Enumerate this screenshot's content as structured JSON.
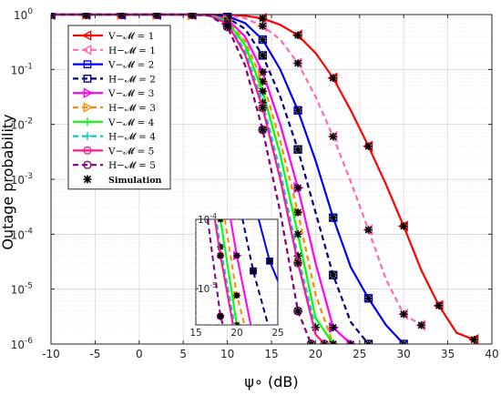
{
  "chart_data": {
    "type": "line",
    "xlabel": "ψ∘ (dB)",
    "ylabel": "Outage probability",
    "xlim": [
      -10,
      40
    ],
    "ylim": [
      1e-06,
      1
    ],
    "yscale": "log",
    "grid": true,
    "legend_position": "top-left",
    "xticks": [
      "-10",
      "-5",
      "0",
      "5",
      "10",
      "15",
      "20",
      "25",
      "30",
      "35",
      "40"
    ],
    "yticks": [
      {
        "base": "10",
        "exp": "0"
      },
      {
        "base": "10",
        "exp": "-1"
      },
      {
        "base": "10",
        "exp": "-2"
      },
      {
        "base": "10",
        "exp": "-3"
      },
      {
        "base": "10",
        "exp": "-4"
      },
      {
        "base": "10",
        "exp": "-5"
      },
      {
        "base": "10",
        "exp": "-6"
      }
    ],
    "series": [
      {
        "name": "V−𝓜 = 1",
        "color": "#ff0000",
        "dash": "solid",
        "marker": "tri-left",
        "x": [
          -10,
          -8,
          -6,
          -4,
          -2,
          0,
          2,
          4,
          6,
          8,
          10,
          12,
          14,
          16,
          18,
          20,
          22,
          24,
          26,
          28,
          30,
          32,
          34,
          36,
          38
        ],
        "y": [
          1,
          1,
          1,
          1,
          1,
          1,
          1,
          1,
          1,
          0.999,
          0.99,
          0.95,
          0.85,
          0.65,
          0.42,
          0.2,
          0.07,
          0.018,
          0.004,
          0.0008,
          0.00014,
          2.2e-05,
          5e-06,
          1.6e-06,
          1.2e-06
        ]
      },
      {
        "name": "H−𝓜 = 1",
        "color": "#ff69b4",
        "dash": "dash",
        "marker": "tri-left",
        "x": [
          -10,
          -8,
          -6,
          -4,
          -2,
          0,
          2,
          4,
          6,
          8,
          10,
          12,
          14,
          16,
          18,
          20,
          22,
          24,
          26,
          28,
          30,
          32
        ],
        "y": [
          1,
          1,
          1,
          1,
          1,
          1,
          1,
          1,
          1,
          0.995,
          0.96,
          0.86,
          0.62,
          0.35,
          0.13,
          0.032,
          0.006,
          0.0009,
          0.00012,
          1.5e-05,
          3.5e-06,
          2.2e-06
        ]
      },
      {
        "name": "V−𝓜 = 2",
        "color": "#0000ff",
        "dash": "solid",
        "marker": "square",
        "x": [
          -10,
          -8,
          -6,
          -4,
          -2,
          0,
          2,
          4,
          6,
          8,
          10,
          12,
          14,
          16,
          18,
          20,
          22,
          24,
          26,
          28,
          30
        ],
        "y": [
          1,
          1,
          1,
          1,
          1,
          1,
          1,
          1,
          1,
          0.99,
          0.93,
          0.7,
          0.35,
          0.1,
          0.018,
          0.0022,
          0.0002,
          2.5e-05,
          6.8e-06,
          2.2e-06,
          1e-06
        ]
      },
      {
        "name": "H−𝓜 = 2",
        "color": "#000080",
        "dash": "dash",
        "marker": "square",
        "x": [
          -10,
          -8,
          -6,
          -4,
          -2,
          0,
          2,
          4,
          6,
          8,
          10,
          12,
          14,
          16,
          18,
          20,
          22,
          24,
          26
        ],
        "y": [
          1,
          1,
          1,
          1,
          1,
          1,
          1,
          1,
          1,
          0.985,
          0.88,
          0.55,
          0.18,
          0.032,
          0.0035,
          0.00025,
          1.8e-05,
          2.5e-06,
          1e-06
        ]
      },
      {
        "name": "V−𝓜 = 3",
        "color": "#ff00ff",
        "dash": "solid",
        "marker": "tri-right",
        "x": [
          -10,
          -8,
          -6,
          -4,
          -2,
          0,
          2,
          4,
          6,
          8,
          10,
          12,
          14,
          16,
          18,
          20,
          22,
          24
        ],
        "y": [
          1,
          1,
          1,
          1,
          1,
          1,
          1,
          1,
          1,
          0.98,
          0.82,
          0.4,
          0.09,
          0.01,
          0.0007,
          3e-05,
          2e-06,
          1e-06
        ]
      },
      {
        "name": "H−𝓜 = 3",
        "color": "#ff8c00",
        "dash": "dash",
        "marker": "tri-right",
        "x": [
          -10,
          -8,
          -6,
          -4,
          -2,
          0,
          2,
          4,
          6,
          8,
          10,
          12,
          14,
          16,
          18,
          20,
          22
        ],
        "y": [
          1,
          1,
          1,
          1,
          1,
          1,
          1,
          1,
          1,
          0.975,
          0.78,
          0.33,
          0.06,
          0.005,
          0.00025,
          8e-06,
          1e-06
        ]
      },
      {
        "name": "V−𝓜 = 4",
        "color": "#00ff00",
        "dash": "solid",
        "marker": "plus",
        "x": [
          -10,
          -8,
          -6,
          -4,
          -2,
          0,
          2,
          4,
          6,
          8,
          10,
          12,
          14,
          16,
          18,
          20,
          22
        ],
        "y": [
          1,
          1,
          1,
          1,
          1,
          1,
          1,
          1,
          1,
          0.97,
          0.75,
          0.28,
          0.04,
          0.0028,
          0.0001,
          3e-06,
          1e-06
        ]
      },
      {
        "name": "H−𝓜 = 4",
        "color": "#00ced1",
        "dash": "dash",
        "marker": "plus",
        "x": [
          -10,
          -8,
          -6,
          -4,
          -2,
          0,
          2,
          4,
          6,
          8,
          10,
          12,
          14,
          16,
          18,
          20
        ],
        "y": [
          1,
          1,
          1,
          1,
          1,
          1,
          1,
          1,
          1,
          0.96,
          0.7,
          0.22,
          0.025,
          0.0014,
          4e-05,
          2e-06
        ]
      },
      {
        "name": "V−𝓜 = 5",
        "color": "#ff1493",
        "dash": "solid",
        "marker": "circle",
        "x": [
          -10,
          -8,
          -6,
          -4,
          -2,
          0,
          2,
          4,
          6,
          8,
          10,
          12,
          14,
          16,
          18,
          20,
          21
        ],
        "y": [
          1,
          1,
          1,
          1,
          1,
          1,
          1,
          1,
          1,
          0.96,
          0.68,
          0.19,
          0.02,
          0.001,
          3e-05,
          1.5e-06,
          1e-06
        ]
      },
      {
        "name": "H−𝓜 = 5",
        "color": "#800080",
        "dash": "dash",
        "marker": "circle",
        "x": [
          -10,
          -8,
          -6,
          -4,
          -2,
          0,
          2,
          4,
          6,
          8,
          10,
          12,
          14,
          16,
          18,
          19.5
        ],
        "y": [
          1,
          1,
          1,
          1,
          1,
          1,
          1,
          1,
          1,
          0.95,
          0.6,
          0.12,
          0.008,
          0.00025,
          4e-06,
          1e-06
        ]
      },
      {
        "name": "Simulation",
        "color": "#000000",
        "dash": "none",
        "marker": "asterisk",
        "x": [],
        "y": []
      }
    ],
    "inset": {
      "xlim": [
        15,
        25
      ],
      "ylim": [
        3e-06,
        0.0001
      ],
      "xticks": [
        "15",
        "20",
        "25"
      ],
      "yticks": [
        {
          "base": "10",
          "exp": "-4"
        },
        {
          "base": "10",
          "exp": "-5"
        }
      ]
    }
  }
}
